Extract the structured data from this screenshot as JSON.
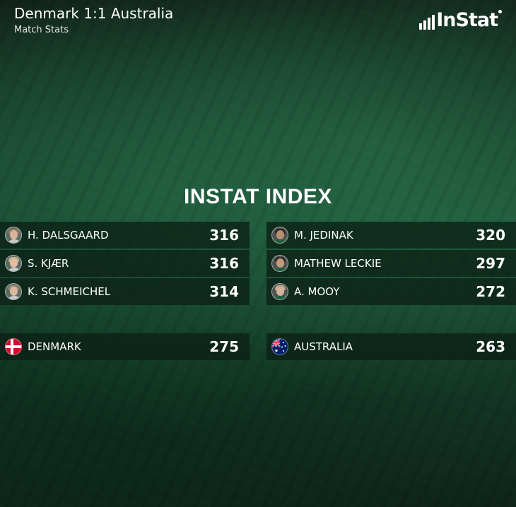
{
  "header": {
    "title": "Denmark 1:1 Australia",
    "subtitle": "Match Stats",
    "logo_text": "InStat"
  },
  "section_title": "INSTAT INDEX",
  "denmark": {
    "players": [
      {
        "name": "H. DALSGAARD",
        "value": "316",
        "skin": "#d9b49a",
        "hair": "#9a7a5c"
      },
      {
        "name": "S. KJÆR",
        "value": "316",
        "skin": "#e0bda4",
        "hair": "#c9b089"
      },
      {
        "name": "K. SCHMEICHEL",
        "value": "314",
        "skin": "#dcb89c",
        "hair": "#a08a70"
      }
    ],
    "team": {
      "name": "DENMARK",
      "value": "275",
      "flag": "denmark-flag"
    }
  },
  "australia": {
    "players": [
      {
        "name": "M. JEDINAK",
        "value": "320",
        "skin": "#b98e72",
        "hair": "#2f2620"
      },
      {
        "name": "MATHEW LECKIE",
        "value": "297",
        "skin": "#c29a7e",
        "hair": "#3a2c22"
      },
      {
        "name": "A. MOOY",
        "value": "272",
        "skin": "#d6b298",
        "hair": "#bfa888"
      }
    ],
    "team": {
      "name": "AUSTRALIA",
      "value": "263",
      "flag": "australia-flag"
    }
  },
  "colors": {
    "denmark_red": "#c8102e",
    "australia_blue": "#012169"
  }
}
